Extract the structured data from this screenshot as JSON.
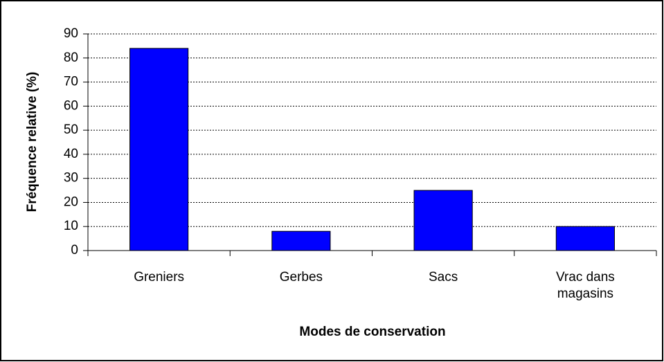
{
  "chart_data": {
    "type": "bar",
    "x_label": "Modes de conservation",
    "y_label": "Fréquence relative (%)",
    "categories": [
      "Greniers",
      "Gerbes",
      "Sacs",
      "Vrac dans magasins"
    ],
    "values": [
      84,
      8,
      25,
      10
    ],
    "color": "#0000ff",
    "ylim": [
      0,
      90
    ],
    "yticks": [
      0,
      10,
      20,
      30,
      40,
      50,
      60,
      70,
      80,
      90
    ],
    "grid": true
  }
}
